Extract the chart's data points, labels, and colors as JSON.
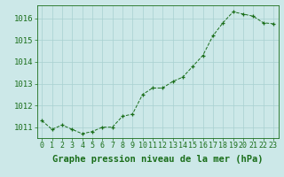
{
  "x": [
    0,
    1,
    2,
    3,
    4,
    5,
    6,
    7,
    8,
    9,
    10,
    11,
    12,
    13,
    14,
    15,
    16,
    17,
    18,
    19,
    20,
    21,
    22,
    23
  ],
  "y": [
    1011.3,
    1010.9,
    1011.1,
    1010.9,
    1010.7,
    1010.8,
    1011.0,
    1011.0,
    1011.5,
    1011.6,
    1012.5,
    1012.8,
    1012.8,
    1013.1,
    1013.3,
    1013.8,
    1014.3,
    1015.2,
    1015.8,
    1016.3,
    1016.2,
    1016.1,
    1015.8,
    1015.75
  ],
  "ylim": [
    1010.5,
    1016.6
  ],
  "xlim": [
    -0.5,
    23.5
  ],
  "yticks": [
    1011,
    1012,
    1013,
    1014,
    1015,
    1016
  ],
  "xticks": [
    0,
    1,
    2,
    3,
    4,
    5,
    6,
    7,
    8,
    9,
    10,
    11,
    12,
    13,
    14,
    15,
    16,
    17,
    18,
    19,
    20,
    21,
    22,
    23
  ],
  "xlabel": "Graphe pression niveau de la mer (hPa)",
  "line_color": "#1a6e1a",
  "marker": "+",
  "marker_color": "#1a6e1a",
  "bg_color": "#cce8e8",
  "grid_color": "#a8d0d0",
  "tick_color": "#1a6e1a",
  "label_color": "#1a6e1a",
  "xlabel_fontsize": 7.5,
  "ytick_fontsize": 6.5,
  "xtick_fontsize": 6.0
}
